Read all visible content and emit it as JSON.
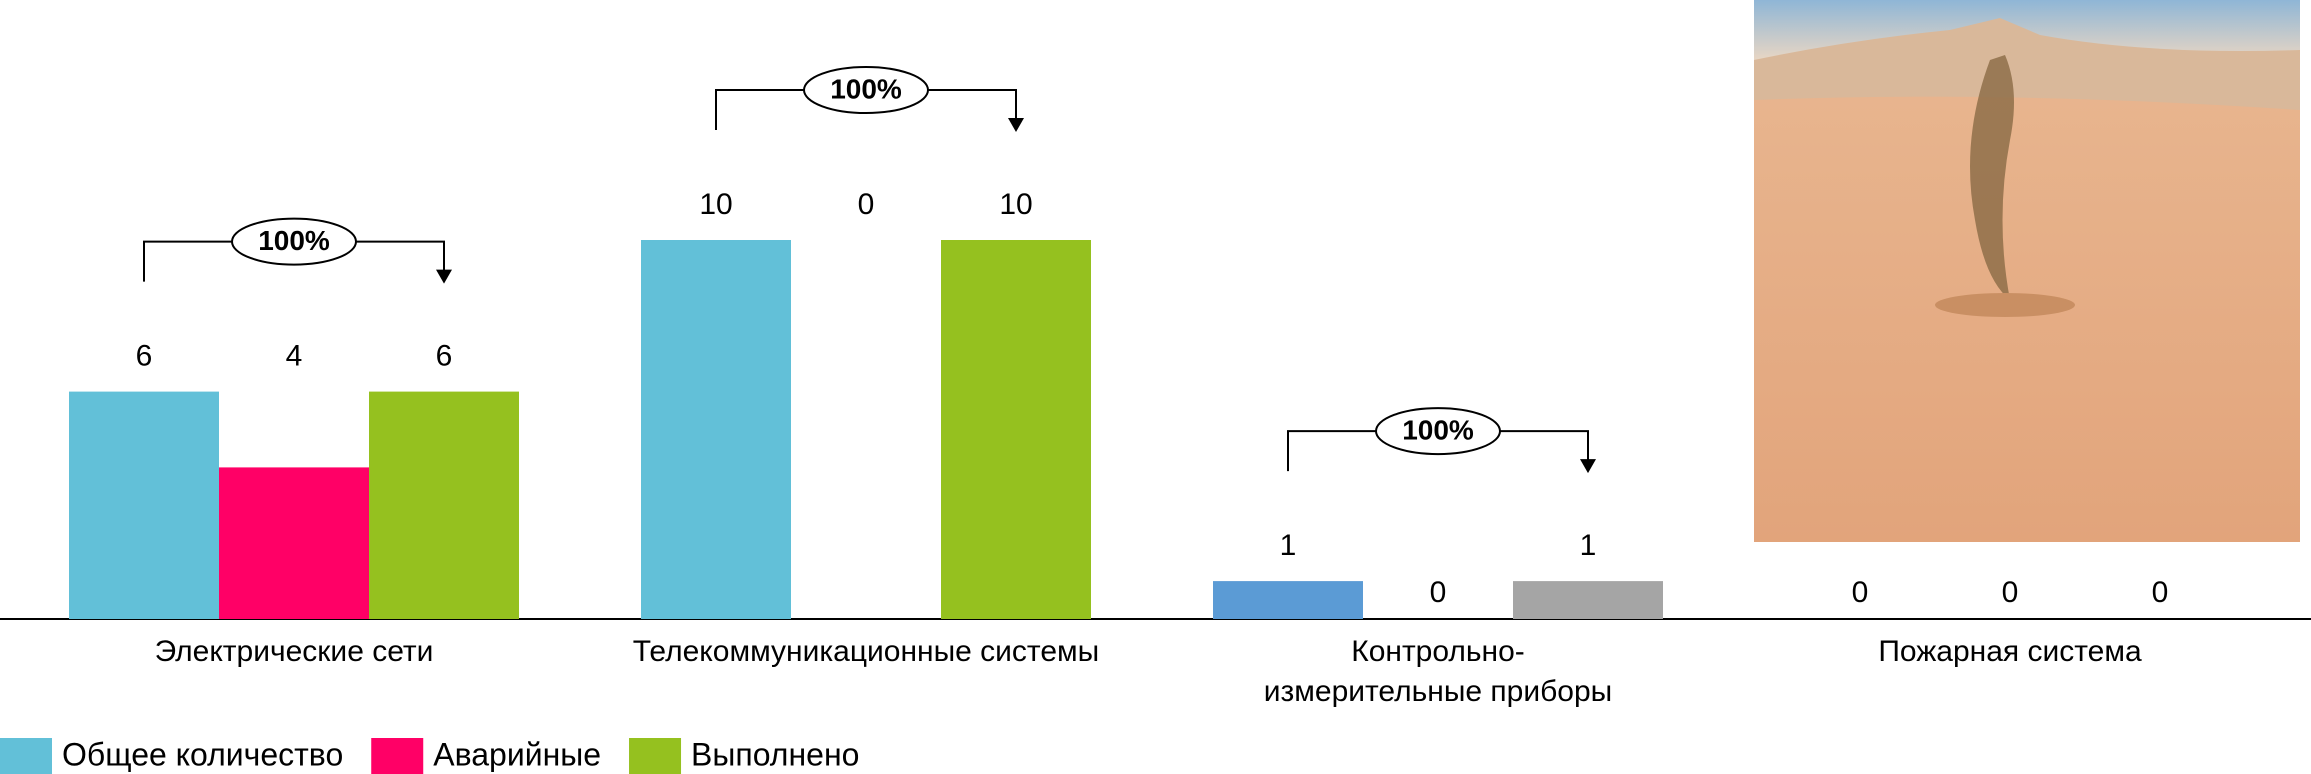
{
  "chart_data": {
    "type": "bar",
    "categories": [
      "Электрические сети",
      "Телекоммуникационные системы",
      "Контрольно-\nизмерительные приборы",
      "Пожарная система"
    ],
    "series": [
      {
        "name": "Общее количество",
        "color": "#62c0d8",
        "colors": [
          "#62c0d8",
          "#62c0d8",
          "#5b9bd5",
          "#62c0d8"
        ],
        "values": [
          6,
          10,
          1,
          0
        ]
      },
      {
        "name": "Аварийные",
        "color": "#ff0066",
        "colors": [
          "#ff0066",
          "#ff0066",
          "#ff0066",
          "#ff0066"
        ],
        "values": [
          4,
          0,
          0,
          0
        ]
      },
      {
        "name": "Выполнено",
        "color": "#95c11f",
        "colors": [
          "#95c11f",
          "#95c11f",
          "#a5a5a5",
          "#95c11f"
        ],
        "values": [
          6,
          10,
          1,
          0
        ]
      }
    ],
    "annotations": [
      "100%",
      "100%",
      "100%",
      null
    ],
    "grid": false
  }
}
